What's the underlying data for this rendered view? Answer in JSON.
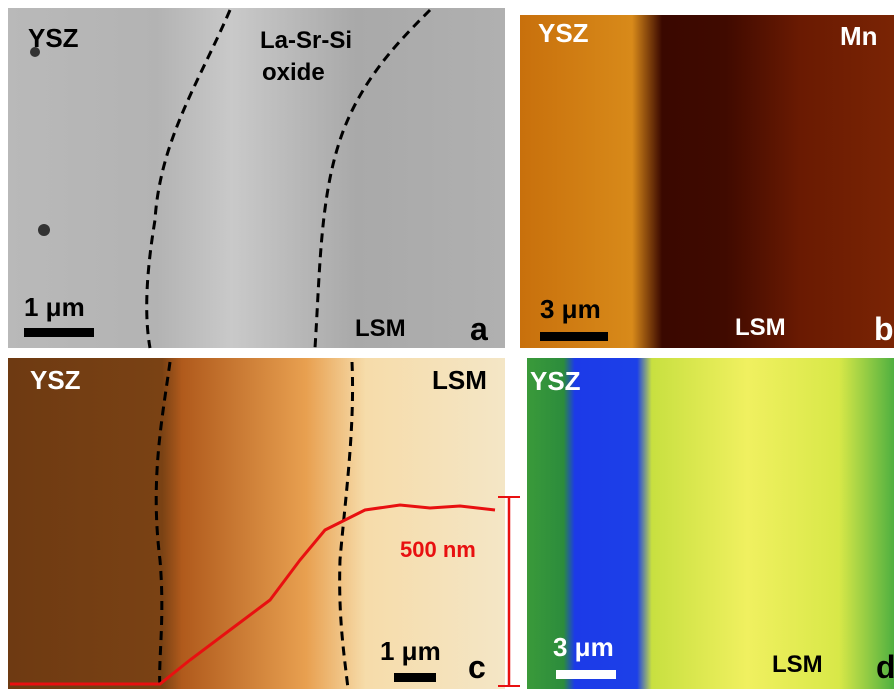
{
  "panels": [
    {
      "label": "a",
      "texts": [
        "YSZ",
        "La-Sr-Si",
        "oxide",
        "LSM"
      ],
      "scale_bar": "1 μm"
    },
    {
      "label": "b",
      "texts": [
        "YSZ",
        "Mn",
        "LSM"
      ],
      "scale_bar": "3 μm"
    },
    {
      "label": "c",
      "texts": [
        "YSZ",
        "LSM",
        "500 nm"
      ],
      "scale_bar": "1 μm"
    },
    {
      "label": "d",
      "texts": [
        "YSZ",
        "LSM"
      ],
      "scale_bar": "3 μm"
    }
  ]
}
